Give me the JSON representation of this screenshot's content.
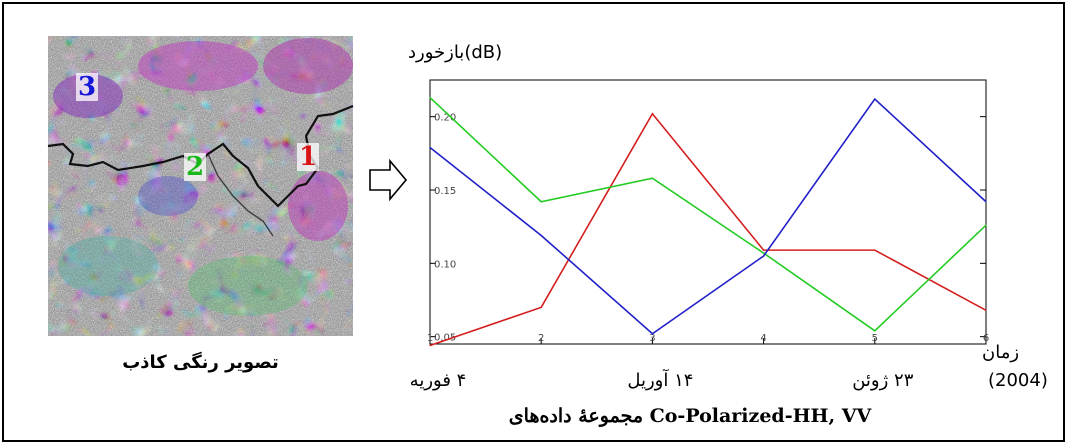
{
  "image_labels": {
    "region_3": "3",
    "region_2": "2",
    "region_1": "1",
    "caption": "تصویر رنگی کاذب"
  },
  "footer": {
    "prefix": "مجموعهٔ داده‌های",
    "suffix": "Co-Polarized-HH, VV"
  },
  "colors": {
    "region_1": "#d42020",
    "region_2": "#22cc22",
    "region_3": "#2020c8"
  },
  "chart_data": {
    "type": "line",
    "ylabel": "بازخورد(dB)",
    "xlabel": "زمان",
    "x": [
      1,
      2,
      3,
      4,
      5,
      6
    ],
    "x_ticks": [
      "1",
      "2",
      "3",
      "4",
      "5",
      "6"
    ],
    "y_ticks": [
      "0.05",
      "0.10",
      "0.15",
      "0.20"
    ],
    "xlim": [
      1,
      6
    ],
    "ylim": [
      0.045,
      0.225
    ],
    "date_labels": [
      {
        "x": 1,
        "text": "۴ فوریه"
      },
      {
        "x": 3,
        "text": "۱۴ آوریل"
      },
      {
        "x": 5,
        "text": "۲۳ ژوئن"
      }
    ],
    "year_label": "(2004)",
    "series": [
      {
        "color": "#d42020",
        "values": [
          0.044,
          0.07,
          0.202,
          0.109,
          0.109,
          0.068
        ]
      },
      {
        "color": "#22cc22",
        "values": [
          0.213,
          0.142,
          0.158,
          0.107,
          0.054,
          0.126
        ]
      },
      {
        "color": "#2020c8",
        "values": [
          0.179,
          0.119,
          0.052,
          0.105,
          0.212,
          0.142
        ]
      }
    ]
  }
}
